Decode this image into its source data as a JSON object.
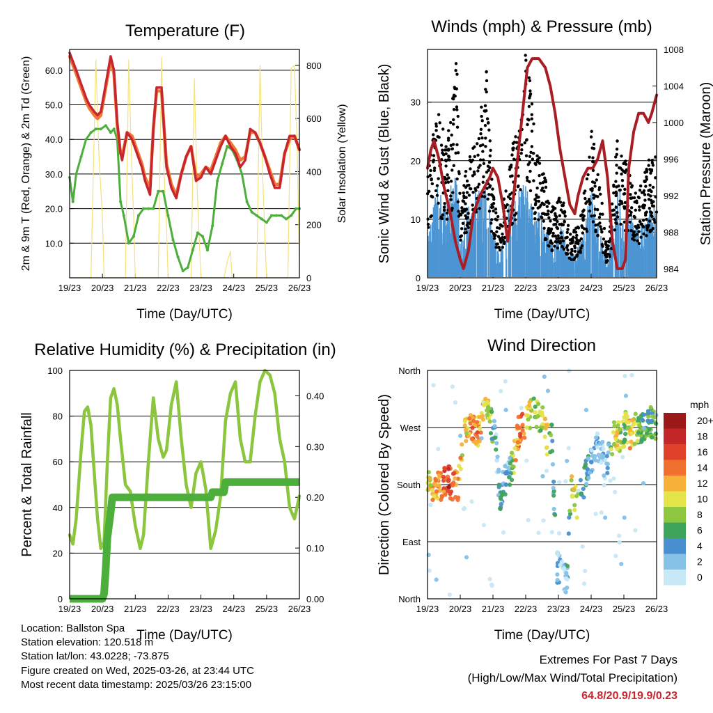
{
  "chart_data": [
    {
      "type": "line",
      "title": "Temperature (F)",
      "xlabel": "Time (Day/UTC)",
      "ylabel": "2m & 9m T (Red, Orange) & 2m Td (Green)",
      "ylabel_right": "Solar Insolation (Yellow)",
      "x_ticks": [
        "19/23",
        "20/23",
        "21/23",
        "22/23",
        "23/23",
        "24/23",
        "25/23",
        "26/23"
      ],
      "y_ticks": [
        "10.0",
        "20.0",
        "30.0",
        "40.0",
        "50.0",
        "60.0"
      ],
      "y2_ticks": [
        "0",
        "200",
        "400",
        "600",
        "800"
      ],
      "ylim": [
        0,
        66
      ],
      "y2lim": [
        0,
        860
      ],
      "x_unit": "days since 19/23",
      "series": [
        {
          "name": "2m T",
          "color": "#c8262f",
          "x": [
            0,
            0.2,
            0.35,
            0.5,
            0.6,
            0.75,
            0.85,
            0.95,
            1.1,
            1.25,
            1.35,
            1.45,
            1.55,
            1.6,
            1.75,
            1.9,
            2.05,
            2.2,
            2.3,
            2.45,
            2.55,
            2.65,
            2.8,
            2.95,
            3.1,
            3.25,
            3.4,
            3.55,
            3.7,
            3.85,
            4.0,
            4.15,
            4.3,
            4.45,
            4.6,
            4.75,
            4.9,
            5.05,
            5.2,
            5.35,
            5.5,
            5.65,
            5.8,
            5.95,
            6.1,
            6.25,
            6.4,
            6.55,
            6.7,
            6.85,
            7.0
          ],
          "values": [
            65,
            60,
            56,
            52,
            50,
            48,
            47,
            48,
            56,
            64,
            60,
            45,
            36,
            34,
            42,
            40,
            36,
            32,
            28,
            24,
            43,
            55,
            55,
            32,
            26,
            23,
            30,
            35,
            38,
            28,
            29,
            32,
            30,
            34,
            38,
            41,
            38,
            36,
            32,
            34,
            43,
            42,
            39,
            35,
            30,
            26,
            26,
            36,
            41,
            41,
            37
          ]
        },
        {
          "name": "9m T",
          "color": "#f07838",
          "x": [
            0,
            0.2,
            0.35,
            0.5,
            0.6,
            0.75,
            0.85,
            0.95,
            1.1,
            1.25,
            1.35,
            1.45,
            1.55,
            1.6,
            1.75,
            1.9,
            2.05,
            2.2,
            2.3,
            2.45,
            2.55,
            2.65,
            2.8,
            2.95,
            3.1,
            3.25,
            3.4,
            3.55,
            3.7,
            3.85,
            4.0,
            4.15,
            4.3,
            4.45,
            4.6,
            4.75,
            4.9,
            5.05,
            5.2,
            5.35,
            5.5,
            5.65,
            5.8,
            5.95,
            6.1,
            6.25,
            6.4,
            6.55,
            6.7,
            6.85,
            7.0
          ],
          "values": [
            64,
            59,
            55,
            51,
            49,
            47,
            46,
            47,
            55,
            63,
            59,
            44,
            36,
            35,
            42,
            41,
            37,
            33,
            29,
            26,
            43,
            54,
            54,
            33,
            27,
            24,
            30,
            35,
            38,
            29,
            30,
            32,
            31,
            35,
            39,
            41,
            39,
            37,
            34,
            35,
            42,
            42,
            39,
            35,
            31,
            27,
            27,
            36,
            40,
            41,
            37
          ]
        },
        {
          "name": "2m Td",
          "color": "#4caf3c",
          "x": [
            0,
            0.1,
            0.2,
            0.35,
            0.5,
            0.65,
            0.8,
            0.95,
            1.1,
            1.25,
            1.35,
            1.45,
            1.55,
            1.65,
            1.8,
            1.95,
            2.1,
            2.25,
            2.4,
            2.55,
            2.7,
            2.85,
            3.0,
            3.15,
            3.3,
            3.45,
            3.6,
            3.75,
            3.9,
            4.05,
            4.2,
            4.35,
            4.5,
            4.65,
            4.8,
            4.95,
            5.1,
            5.25,
            5.4,
            5.55,
            5.7,
            5.85,
            6.0,
            6.15,
            6.3,
            6.45,
            6.6,
            6.75,
            6.9,
            7.0
          ],
          "values": [
            29,
            22,
            30,
            35,
            40,
            42,
            43,
            43,
            44,
            42,
            43,
            40,
            22,
            18,
            10,
            12,
            18,
            20,
            20,
            20,
            25,
            25,
            18,
            11,
            6,
            2,
            3,
            8,
            13,
            12,
            8,
            15,
            28,
            33,
            38,
            37,
            34,
            30,
            22,
            19,
            18,
            17,
            16,
            18,
            18,
            18,
            17,
            18,
            20,
            20
          ]
        },
        {
          "name": "Solar Insolation",
          "color": "#f6e27a",
          "x": [
            0,
            0.65,
            0.8,
            0.9,
            1.0,
            1.05,
            1.7,
            1.8,
            1.88,
            1.95,
            2.0,
            2.7,
            2.8,
            2.88,
            2.95,
            3.0,
            3.7,
            3.8,
            3.88,
            3.95,
            4.0,
            4.7,
            4.8,
            4.9,
            4.95,
            5.7,
            5.8,
            5.88,
            5.95,
            6.0,
            6.65,
            6.75,
            6.85,
            6.93,
            7.0
          ],
          "values": [
            0,
            0,
            820,
            440,
            230,
            0,
            0,
            820,
            470,
            230,
            0,
            0,
            830,
            390,
            200,
            0,
            0,
            750,
            360,
            140,
            0,
            0,
            60,
            100,
            0,
            0,
            800,
            390,
            150,
            0,
            0,
            790,
            800,
            500,
            50
          ]
        }
      ]
    },
    {
      "type": "scatter",
      "title": "Winds (mph) & Pressure (mb)",
      "xlabel": "Time (Day/UTC)",
      "ylabel": "Sonic Wind & Gust (Blue, Black)",
      "ylabel_right": "Station Pressure (Maroon)",
      "x_ticks": [
        "19/23",
        "20/23",
        "21/23",
        "22/23",
        "23/23",
        "24/23",
        "25/23",
        "26/23"
      ],
      "y_ticks": [
        "0",
        "10",
        "20",
        "30"
      ],
      "y2_ticks": [
        "984",
        "988",
        "992",
        "996",
        "1000",
        "1004",
        "1008"
      ],
      "ylim": [
        0,
        39
      ],
      "y2lim": [
        983,
        1008
      ],
      "x_unit": "days since 19/23",
      "series": [
        {
          "name": "Sonic Wind",
          "color": "#4c95d3",
          "x": [
            0,
            0.3,
            0.6,
            0.9,
            1.0,
            1.2,
            1.5,
            1.8,
            2.0,
            2.2,
            2.5,
            2.8,
            3.0,
            3.3,
            3.6,
            3.8,
            4.1,
            4.4,
            4.7,
            5.0,
            5.3,
            5.5,
            5.8,
            6.1,
            6.4,
            6.7,
            7.0
          ],
          "values": [
            8,
            12,
            10,
            16,
            5,
            10,
            12,
            13,
            6,
            3,
            10,
            12,
            13,
            10,
            7,
            5,
            7,
            3,
            5,
            12,
            6,
            2,
            12,
            10,
            7,
            9,
            10
          ]
        },
        {
          "name": "Gust",
          "color": "#000000",
          "x": [
            0,
            0.3,
            0.6,
            0.9,
            1.0,
            1.2,
            1.5,
            1.8,
            2.0,
            2.2,
            2.5,
            2.8,
            3.0,
            3.3,
            3.6,
            3.8,
            4.1,
            4.4,
            4.7,
            5.0,
            5.3,
            5.5,
            5.8,
            6.1,
            6.4,
            6.7,
            7.0
          ],
          "values": [
            18,
            24,
            20,
            32,
            10,
            16,
            20,
            30,
            12,
            8,
            18,
            22,
            34,
            20,
            14,
            10,
            12,
            6,
            9,
            22,
            12,
            4,
            20,
            16,
            12,
            16,
            20
          ]
        },
        {
          "name": "Station Pressure",
          "color": "#a81e24",
          "x": [
            0,
            0.1,
            0.2,
            0.35,
            0.5,
            0.7,
            0.85,
            1.0,
            1.1,
            1.25,
            1.4,
            1.6,
            1.75,
            1.9,
            2.0,
            2.15,
            2.3,
            2.45,
            2.6,
            2.75,
            2.9,
            3.05,
            3.2,
            3.4,
            3.6,
            3.75,
            3.9,
            4.05,
            4.2,
            4.35,
            4.5,
            4.6,
            4.75,
            4.9,
            5.05,
            5.2,
            5.35,
            5.5,
            5.65,
            5.8,
            5.95,
            6.05,
            6.15,
            6.3,
            6.45,
            6.6,
            6.75,
            6.85,
            7.0
          ],
          "values": [
            995,
            997,
            998,
            996,
            993,
            990,
            987,
            985,
            984,
            986,
            990,
            992,
            993,
            994,
            995,
            994,
            991,
            987,
            991,
            996,
            1001,
            1006,
            1007,
            1007,
            1006,
            1004,
            1001,
            997,
            994,
            991,
            990,
            992,
            994,
            995,
            995,
            996,
            998,
            994,
            987,
            984,
            984,
            985,
            995,
            999,
            1001,
            1001,
            1000,
            1001,
            1003
          ]
        }
      ]
    },
    {
      "type": "line",
      "title": "Relative Humidity (%) & Precipitation (in)",
      "xlabel": "Time (Day/UTC)",
      "ylabel": "Percent & Total Rainfall",
      "x_ticks": [
        "19/23",
        "20/23",
        "21/23",
        "22/23",
        "23/23",
        "24/23",
        "25/23",
        "26/23"
      ],
      "y_ticks": [
        "0",
        "20",
        "40",
        "60",
        "80",
        "100"
      ],
      "y2_ticks": [
        "0.00",
        "0.10",
        "0.20",
        "0.30",
        "0.40"
      ],
      "ylim": [
        0,
        100
      ],
      "y2lim": [
        0,
        0.45
      ],
      "x_unit": "days since 19/23",
      "series": [
        {
          "name": "Relative Humidity",
          "color": "#8cc63f",
          "x": [
            0,
            0.1,
            0.2,
            0.35,
            0.45,
            0.55,
            0.65,
            0.75,
            0.85,
            0.95,
            1.05,
            1.15,
            1.25,
            1.35,
            1.45,
            1.55,
            1.7,
            1.85,
            2.0,
            2.15,
            2.25,
            2.4,
            2.55,
            2.7,
            2.85,
            2.95,
            3.1,
            3.25,
            3.4,
            3.55,
            3.7,
            3.85,
            4.0,
            4.15,
            4.3,
            4.45,
            4.6,
            4.75,
            4.9,
            5.05,
            5.2,
            5.35,
            5.5,
            5.65,
            5.8,
            5.95,
            6.1,
            6.25,
            6.4,
            6.55,
            6.7,
            6.85,
            7.0
          ],
          "values": [
            28,
            24,
            35,
            65,
            82,
            84,
            76,
            55,
            35,
            22,
            25,
            60,
            88,
            92,
            85,
            70,
            50,
            47,
            32,
            22,
            28,
            60,
            88,
            70,
            62,
            65,
            85,
            95,
            70,
            50,
            40,
            55,
            60,
            48,
            22,
            30,
            45,
            78,
            90,
            95,
            70,
            60,
            60,
            80,
            95,
            100,
            98,
            90,
            70,
            60,
            40,
            35,
            45
          ]
        },
        {
          "name": "Total Rainfall",
          "color": "#4caf3c",
          "x": [
            0,
            0.5,
            1.0,
            1.05,
            1.1,
            1.15,
            1.25,
            1.3,
            1.4,
            1.5,
            2.0,
            3.0,
            4.0,
            4.3,
            4.35,
            4.4,
            4.5,
            4.7,
            4.75,
            5.0,
            6.0,
            7.0
          ],
          "values": [
            0,
            0,
            0,
            0.01,
            0.06,
            0.12,
            0.17,
            0.2,
            0.2,
            0.2,
            0.2,
            0.2,
            0.2,
            0.2,
            0.21,
            0.21,
            0.21,
            0.21,
            0.23,
            0.23,
            0.23,
            0.23
          ]
        }
      ]
    },
    {
      "type": "scatter",
      "title": "Wind Direction",
      "xlabel": "Time (Day/UTC)",
      "ylabel": "Direction (Colored By Speed)",
      "x_ticks": [
        "19/23",
        "20/23",
        "21/23",
        "22/23",
        "23/23",
        "24/23",
        "25/23",
        "26/23"
      ],
      "y_ticks": [
        "North",
        "East",
        "South",
        "West",
        "North"
      ],
      "ylim": [
        0,
        360
      ],
      "colorbar": {
        "title": "mph",
        "labels": [
          "0",
          "2",
          "4",
          "6",
          "8",
          "10",
          "12",
          "14",
          "16",
          "18",
          "20+"
        ],
        "colors": [
          "#c6e8f7",
          "#86c1e8",
          "#4a8fcf",
          "#3fa45b",
          "#8dc63f",
          "#e4e34a",
          "#f7b038",
          "#f07030",
          "#e0412a",
          "#c42727",
          "#9c1919"
        ]
      },
      "series": [
        {
          "name": "Wind Direction",
          "x": [
            0.05,
            0.2,
            0.35,
            0.5,
            0.65,
            0.8,
            0.95,
            1.1,
            1.2,
            1.35,
            1.5,
            1.65,
            1.8,
            1.9,
            2.0,
            2.1,
            2.2,
            2.3,
            2.45,
            2.6,
            2.75,
            2.9,
            3.05,
            3.2,
            3.35,
            3.5,
            3.65,
            3.8,
            3.95,
            4.1,
            4.25,
            4.4,
            4.55,
            4.7,
            4.85,
            5.0,
            5.15,
            5.3,
            5.45,
            5.6,
            5.75,
            5.9,
            6.05,
            6.2,
            6.35,
            6.5,
            6.65,
            6.8,
            6.95
          ],
          "values": [
            183,
            180,
            178,
            182,
            185,
            180,
            178,
            268,
            275,
            270,
            255,
            282,
            300,
            292,
            268,
            250,
            160,
            180,
            190,
            210,
            260,
            268,
            282,
            295,
            290,
            282,
            250,
            250,
            50,
            40,
            30,
            180,
            150,
            170,
            195,
            220,
            240,
            230,
            210,
            240,
            262,
            250,
            270,
            258,
            268,
            270,
            272,
            278,
            275
          ],
          "speeds": [
            10,
            14,
            12,
            16,
            18,
            16,
            14,
            10,
            12,
            15,
            14,
            13,
            11,
            9,
            6,
            4,
            5,
            6,
            3,
            10,
            14,
            16,
            12,
            10,
            9,
            10,
            12,
            6,
            4,
            3,
            2,
            12,
            10,
            7,
            5,
            4,
            3,
            2,
            2,
            8,
            12,
            10,
            9,
            14,
            10,
            8,
            6,
            7,
            8
          ]
        }
      ]
    }
  ],
  "info": {
    "location": "Location: Ballston Spa",
    "elevation": "Station elevation: 120.518 m",
    "latlon": "Station lat/lon: 43.0228; -73.875",
    "created": "Figure created on Wed, 2025-03-26, at 23:44 UTC",
    "recent": "Most recent data timestamp: 2025/03/26 23:15:00"
  },
  "extremes": {
    "title": "Extremes For Past 7 Days",
    "subtitle": "(High/Low/Max Wind/Total Precipitation)",
    "values": "64.8/20.9/19.9/0.23"
  }
}
